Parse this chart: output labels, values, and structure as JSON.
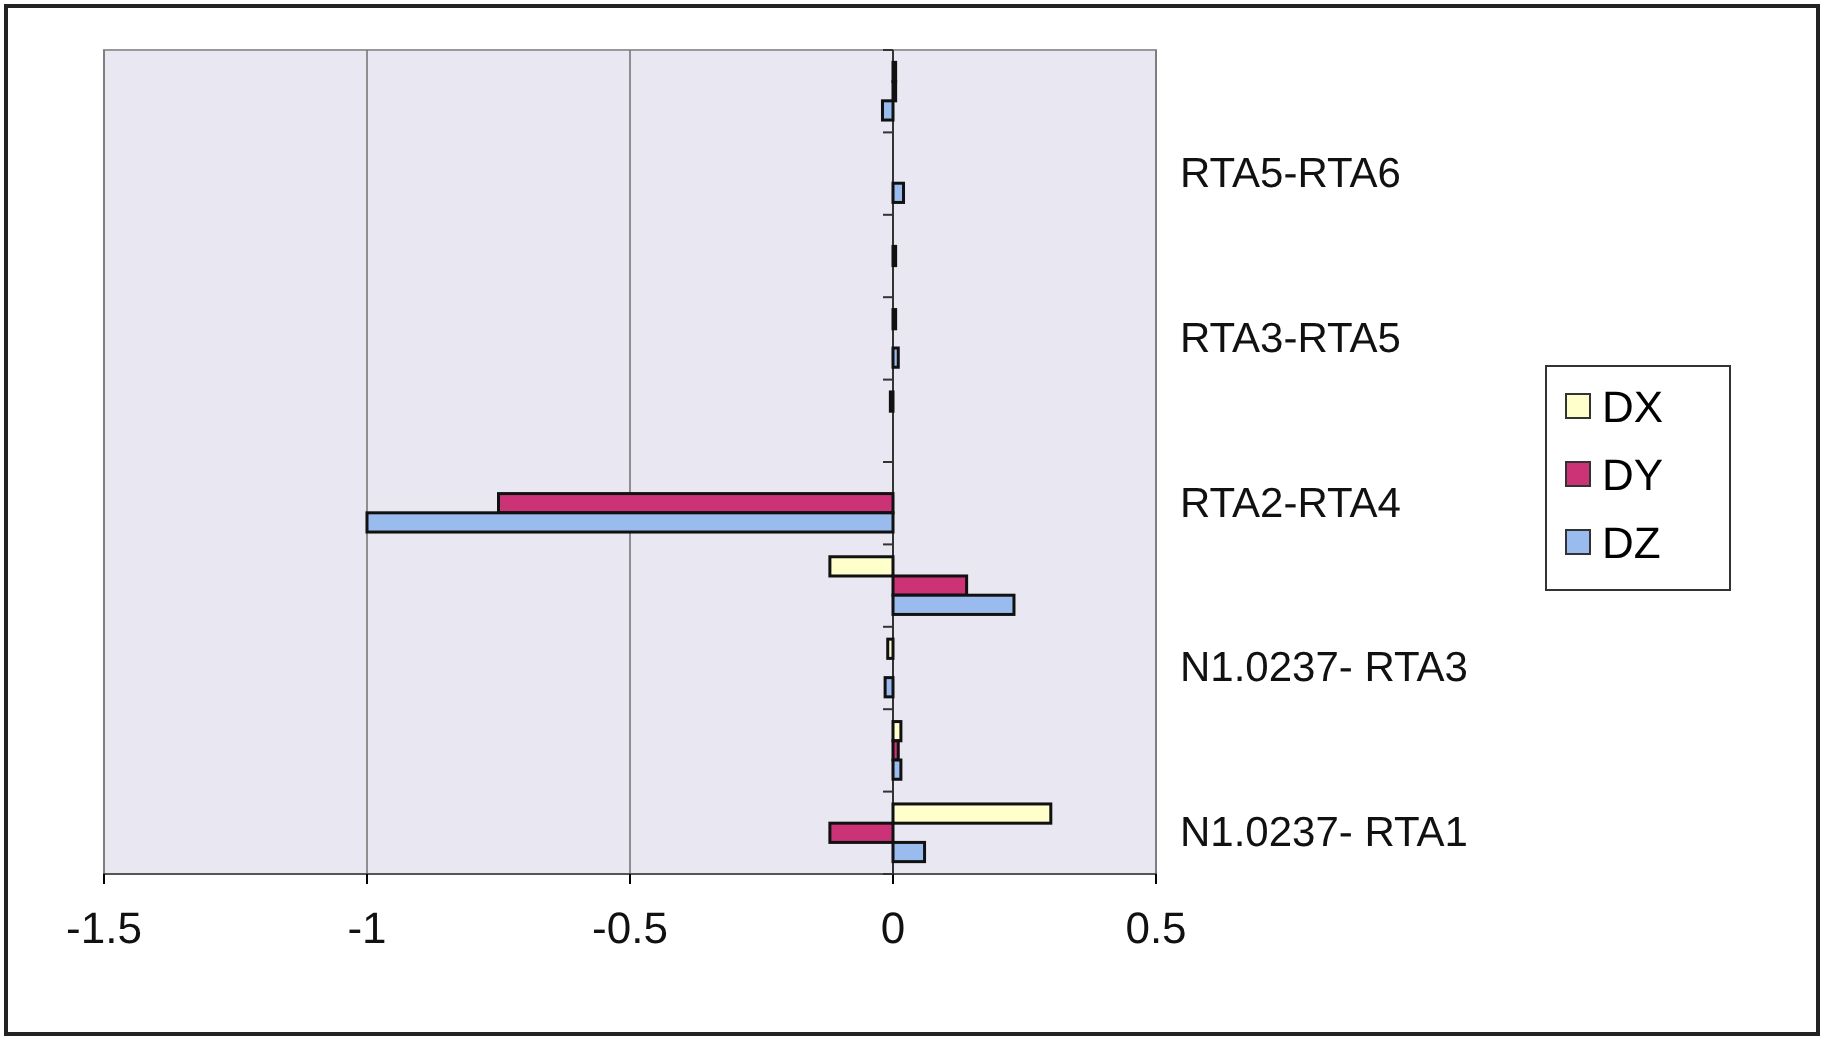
{
  "chart_data": {
    "type": "bar",
    "orientation": "horizontal",
    "categories": [
      null,
      "RTA5-RTA6",
      null,
      "RTA3-RTA5",
      null,
      "RTA2-RTA4",
      null,
      "N1.0237- RTA3",
      null,
      "N1.0237- RTA1"
    ],
    "series": [
      {
        "name": "DX",
        "color": "#ffffcc",
        "values": [
          0.005,
          0,
          0,
          0.005,
          -0.005,
          0,
          -0.12,
          -0.01,
          0.015,
          0.3
        ]
      },
      {
        "name": "DY",
        "color": "#cc3377",
        "values": [
          0.005,
          0,
          0.005,
          0,
          0,
          -0.75,
          0.14,
          0,
          0.01,
          -0.12
        ]
      },
      {
        "name": "DZ",
        "color": "#99bbee",
        "values": [
          -0.02,
          0.02,
          0,
          0.01,
          0,
          -1.0,
          0.23,
          -0.015,
          0.015,
          0.06
        ]
      }
    ],
    "xlim": [
      -1.5,
      0.5
    ],
    "xticks": [
      -1.5,
      -1,
      -0.5,
      0,
      0.5
    ],
    "grid": "x",
    "legend": "right"
  }
}
